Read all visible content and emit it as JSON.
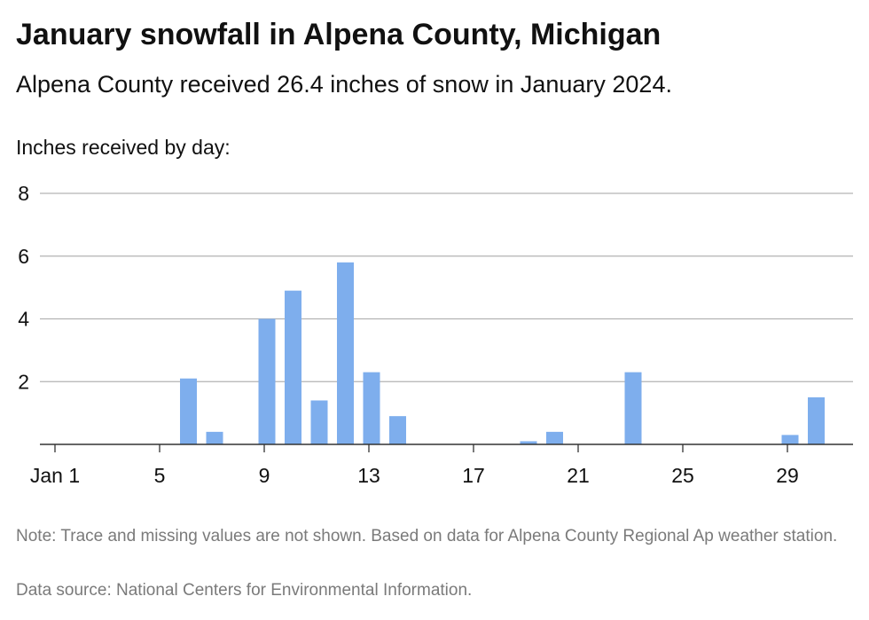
{
  "title": "January snowfall in Alpena County, Michigan",
  "subtitle": "Alpena County received 26.4 inches of snow in January 2024.",
  "note": "Note: Trace and missing values are not shown. Based on data for Alpena County Regional Ap weather station.",
  "source": "Data source: National Centers for Environmental Information.",
  "colors": {
    "bar": "#7eaeed",
    "grid": "#b3b3b3",
    "axis": "#333333"
  },
  "chart_data": {
    "type": "bar",
    "title": "January snowfall in Alpena County, Michigan",
    "ylabel": "Inches received by day:",
    "xlabel": "",
    "ylim": [
      0,
      8
    ],
    "yticks": [
      2,
      4,
      6,
      8
    ],
    "xtick_days": [
      1,
      5,
      9,
      13,
      17,
      21,
      25,
      29
    ],
    "xtick_labels": [
      "Jan 1",
      "5",
      "9",
      "13",
      "17",
      "21",
      "25",
      "29"
    ],
    "grid": true,
    "days": [
      1,
      2,
      3,
      4,
      5,
      6,
      7,
      8,
      9,
      10,
      11,
      12,
      13,
      14,
      15,
      16,
      17,
      18,
      19,
      20,
      21,
      22,
      23,
      24,
      25,
      26,
      27,
      28,
      29,
      30,
      31
    ],
    "values": [
      0,
      0,
      0,
      0,
      0,
      2.1,
      0.4,
      0,
      4.0,
      4.9,
      1.4,
      5.8,
      2.3,
      0.9,
      0,
      0,
      0,
      0,
      0.1,
      0.4,
      0,
      0,
      2.3,
      0,
      0,
      0,
      0,
      0,
      0.3,
      1.5,
      0
    ]
  }
}
